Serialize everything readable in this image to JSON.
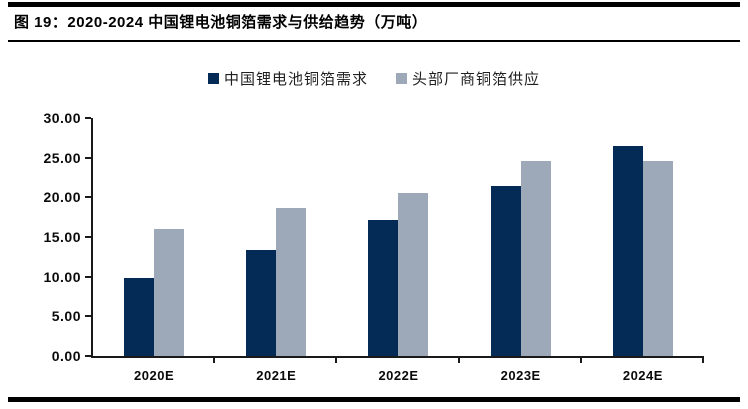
{
  "figure": {
    "title": "图 19：2020-2024 中国锂电池铜箔需求与供给趋势（万吨）"
  },
  "colors": {
    "demand_bar": "#042A56",
    "supply_bar": "#9DA9B8",
    "axis": "#1a1a1a",
    "rule": "#000000",
    "text": "#0a0a0a"
  },
  "chart_data": {
    "type": "bar",
    "title": "2020-2024 中国锂电池铜箔需求与供给趋势（万吨）",
    "categories": [
      "2020E",
      "2021E",
      "2022E",
      "2023E",
      "2024E"
    ],
    "series": [
      {
        "name": "中国锂电池铜箔需求",
        "color": "#042A56",
        "values": [
          9.8,
          13.4,
          17.1,
          21.4,
          26.5
        ]
      },
      {
        "name": "头部厂商铜箔供应",
        "color": "#9DA9B8",
        "values": [
          16.0,
          18.6,
          20.6,
          24.6,
          24.6
        ]
      }
    ],
    "xlabel": "",
    "ylabel": "",
    "ylim": [
      0,
      30
    ],
    "ytick_step": 5,
    "ytick_labels": [
      "0.00",
      "5.00",
      "10.00",
      "15.00",
      "20.00",
      "25.00",
      "30.00"
    ],
    "grid": false,
    "legend_position": "top"
  }
}
